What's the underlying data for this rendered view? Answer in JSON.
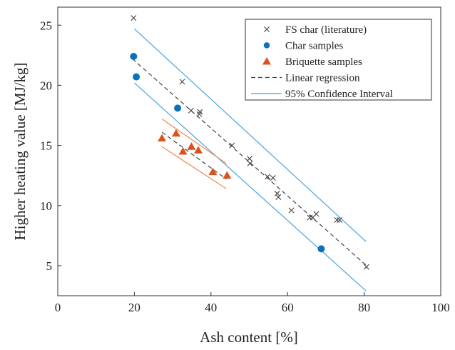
{
  "chart_data": {
    "type": "scatter",
    "xlabel": "Ash content [%]",
    "ylabel": "Higher heating value [MJ/kg]",
    "xlim": [
      0,
      100
    ],
    "ylim": [
      2.5,
      26.5
    ],
    "x_ticks": [
      "0",
      "20",
      "40",
      "60",
      "80",
      "100"
    ],
    "y_ticks": [
      "5",
      "10",
      "15",
      "20",
      "25"
    ],
    "grid": false,
    "legend_position": "top-right",
    "series": [
      {
        "name": "FS char (literature)",
        "marker": "x",
        "color": "#444444",
        "points": [
          [
            19.8,
            25.6
          ],
          [
            32.5,
            20.3
          ],
          [
            34.8,
            17.9
          ],
          [
            37.1,
            17.8
          ],
          [
            37.0,
            17.6
          ],
          [
            45.5,
            15.0
          ],
          [
            50.1,
            13.9
          ],
          [
            50.2,
            13.5
          ],
          [
            54.8,
            12.4
          ],
          [
            56.2,
            12.3
          ],
          [
            57.3,
            11.0
          ],
          [
            57.6,
            10.7
          ],
          [
            61.0,
            9.6
          ],
          [
            65.8,
            9.0
          ],
          [
            66.6,
            9.0
          ],
          [
            67.5,
            9.3
          ],
          [
            72.9,
            8.8
          ],
          [
            73.6,
            8.8
          ],
          [
            80.6,
            4.9
          ]
        ]
      },
      {
        "name": "Char samples",
        "marker": "circle",
        "color": "#0a72bd",
        "points": [
          [
            19.8,
            22.4
          ],
          [
            20.5,
            20.7
          ],
          [
            31.3,
            18.1
          ],
          [
            68.8,
            6.4
          ]
        ]
      },
      {
        "name": "Briquette samples",
        "marker": "triangle",
        "color": "#d9531e",
        "points": [
          [
            27.2,
            15.6
          ],
          [
            30.9,
            16.0
          ],
          [
            32.7,
            14.5
          ],
          [
            34.9,
            14.9
          ],
          [
            36.7,
            14.6
          ],
          [
            40.5,
            12.8
          ],
          [
            44.2,
            12.5
          ]
        ]
      }
    ],
    "lines": [
      {
        "name": "Linear regression",
        "style": "dashed",
        "color": "#444444",
        "points": [
          [
            19.5,
            22.2
          ],
          [
            81.0,
            4.9
          ]
        ]
      },
      {
        "name": "95% Confidence Interval",
        "style": "solid",
        "color": "#4aa3df",
        "points": [
          [
            20.0,
            24.7
          ],
          [
            80.5,
            7.0
          ]
        ]
      },
      {
        "name": "",
        "style": "solid",
        "color": "#4aa3df",
        "points": [
          [
            20.0,
            20.2
          ],
          [
            80.5,
            2.9
          ]
        ]
      },
      {
        "name": "",
        "style": "dashed",
        "color": "#444444",
        "points": [
          [
            27.2,
            16.1
          ],
          [
            44.0,
            12.2
          ]
        ]
      },
      {
        "name": "",
        "style": "solid",
        "color": "#f08a50",
        "points": [
          [
            27.2,
            17.2
          ],
          [
            44.0,
            13.5
          ]
        ]
      },
      {
        "name": "",
        "style": "solid",
        "color": "#f08a50",
        "points": [
          [
            27.2,
            14.9
          ],
          [
            44.0,
            11.4
          ]
        ]
      }
    ],
    "legend": [
      {
        "label": "FS char (literature)",
        "marker": "x",
        "color": "#444444"
      },
      {
        "label": "Char samples",
        "marker": "circle",
        "color": "#0a72bd"
      },
      {
        "label": "Briquette samples",
        "marker": "triangle",
        "color": "#d9531e"
      },
      {
        "label": "Linear regression",
        "marker": "dashed-line",
        "color": "#444444"
      },
      {
        "label": "95% Confidence Interval",
        "marker": "solid-line",
        "color": "#4aa3df"
      }
    ]
  }
}
